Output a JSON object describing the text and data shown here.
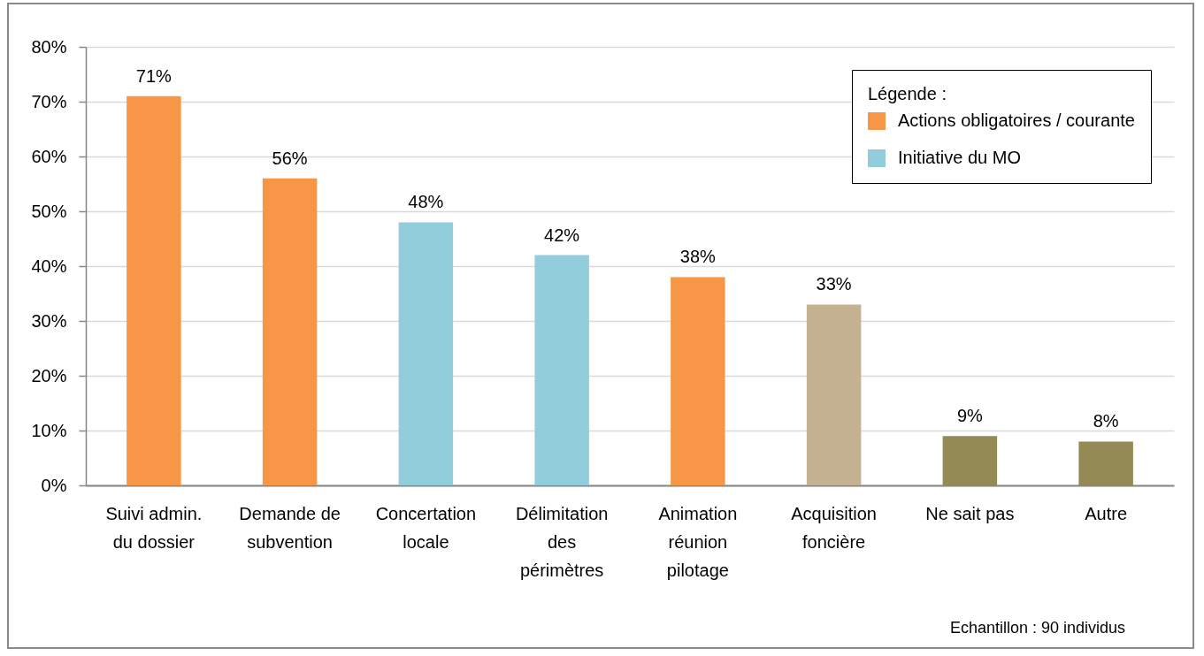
{
  "chart_data": {
    "type": "bar",
    "categories": [
      "Suivi admin. du dossier",
      "Demande de subvention",
      "Concertation locale",
      "Délimitation des périmètres",
      "Animation réunion pilotage",
      "Acquisition foncière",
      "Ne sait pas",
      "Autre"
    ],
    "series": [
      {
        "name": "Actions obligatoires / courante",
        "color": "#f79646",
        "values": [
          71,
          56,
          null,
          null,
          38,
          null,
          null,
          null
        ],
        "value_labels": [
          "71%",
          "56%",
          null,
          null,
          "38%",
          null,
          null,
          null
        ]
      },
      {
        "name": "Initiative du MO",
        "color": "#92cddc",
        "values": [
          null,
          null,
          48,
          42,
          null,
          null,
          null,
          null
        ],
        "value_labels": [
          null,
          null,
          "48%",
          "42%",
          null,
          null,
          null,
          null
        ]
      },
      {
        "color": "#c4b191",
        "values": [
          null,
          null,
          null,
          null,
          null,
          33,
          null,
          null
        ],
        "value_labels": [
          null,
          null,
          null,
          null,
          null,
          "33%",
          null,
          null
        ]
      },
      {
        "color": "#948a54",
        "values": [
          null,
          null,
          null,
          null,
          null,
          null,
          9,
          8
        ],
        "value_labels": [
          null,
          null,
          null,
          null,
          null,
          null,
          "9%",
          "8%"
        ]
      }
    ],
    "stacked": true,
    "ylim": [
      0,
      80
    ],
    "yticks": [
      {
        "value": 0,
        "label": "0%"
      },
      {
        "value": 10,
        "label": "10%"
      },
      {
        "value": 20,
        "label": "20%"
      },
      {
        "value": 30,
        "label": "30%"
      },
      {
        "value": 40,
        "label": "40%"
      },
      {
        "value": 50,
        "label": "50%"
      },
      {
        "value": 60,
        "label": "60%"
      },
      {
        "value": 70,
        "label": "70%"
      },
      {
        "value": 80,
        "label": "80%"
      }
    ],
    "grid": "y",
    "legend": "top right",
    "legend_title": "Légende :",
    "annotations": [
      "Echantillon : 90 individus"
    ]
  }
}
